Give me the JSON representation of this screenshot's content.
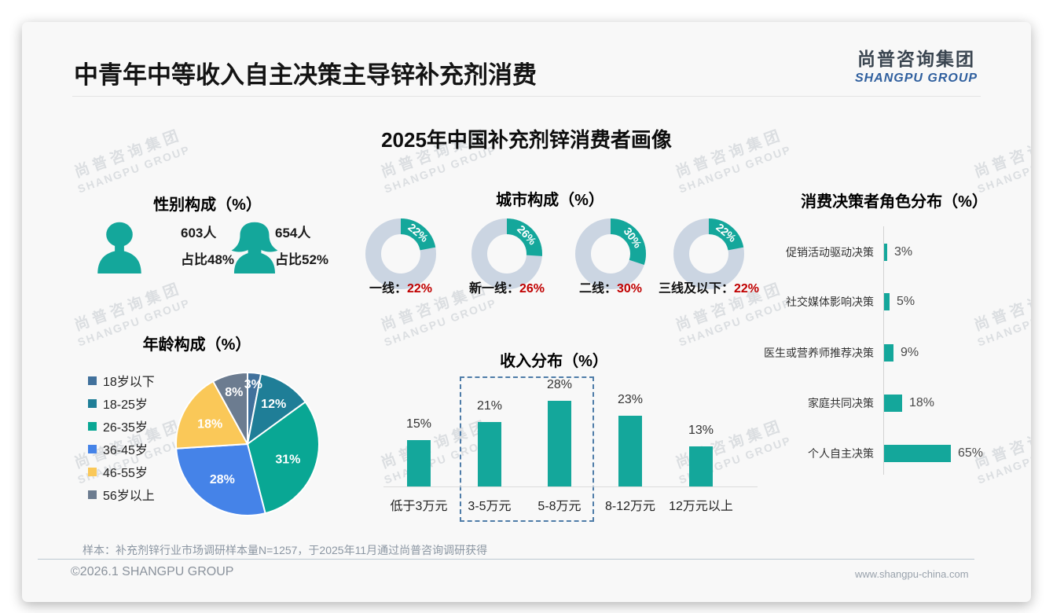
{
  "header": {
    "title": "中青年中等收入自主决策主导锌补充剂消费",
    "logo_cn": "尚普咨询集团",
    "logo_en": "SHANGPU GROUP"
  },
  "main_title": "2025年中国补充剂锌消费者画像",
  "watermark_cn": "尚普咨询集团",
  "watermark_en": "SHANGPU GROUP",
  "theme": {
    "accent_teal": "#14A79B",
    "donut_ring_gray": "#CBD5E2",
    "value_red": "#C00000",
    "logo_blue": "#2F5F9E"
  },
  "chart_data": [
    {
      "id": "gender",
      "type": "pictogram",
      "title": "性别构成（%）",
      "items": [
        {
          "icon": "male",
          "count": "603人",
          "share": "占比48%"
        },
        {
          "icon": "female",
          "count": "654人",
          "share": "占比52%"
        }
      ]
    },
    {
      "id": "age",
      "type": "pie",
      "title": "年龄构成（%）",
      "categories": [
        "18岁以下",
        "18-25岁",
        "26-35岁",
        "36-45岁",
        "46-55岁",
        "56岁以上"
      ],
      "values": [
        3,
        12,
        31,
        28,
        18,
        8
      ],
      "colors": [
        "#41719C",
        "#1F7E97",
        "#09A794",
        "#4583E8",
        "#FAC858",
        "#6C7C90"
      ],
      "legend_position": "left",
      "start_angle": "top-clockwise"
    },
    {
      "id": "city",
      "type": "donut",
      "title": "城市构成（%）",
      "categories": [
        "一线",
        "新一线",
        "二线",
        "三线及以下"
      ],
      "values": [
        22,
        26,
        30,
        22
      ],
      "segment_color": "#14A79B",
      "ring_color": "#CBD5E2",
      "value_color": "#C00000"
    },
    {
      "id": "income",
      "type": "bar",
      "title": "收入分布（%）",
      "categories": [
        "低于3万元",
        "3-5万元",
        "5-8万元",
        "8-12万元",
        "12万元以上"
      ],
      "values": [
        15,
        21,
        28,
        23,
        13
      ],
      "bar_color": "#14A79B",
      "highlighted_categories": [
        "3-5万元",
        "5-8万元"
      ],
      "grid": "off"
    },
    {
      "id": "decision",
      "type": "hbar",
      "title": "消费决策者角色分布（%）",
      "categories": [
        "促销活动驱动决策",
        "社交媒体影响决策",
        "医生或营养师推荐决策",
        "家庭共同决策",
        "个人自主决策"
      ],
      "values": [
        3,
        5,
        9,
        18,
        65
      ],
      "bar_color": "#14A79B",
      "grid": "off"
    }
  ],
  "footer": {
    "sample_note": "样本：补充剂锌行业市场调研样本量N=1257，于2025年11月通过尚普咨询调研获得",
    "copyright": "©2026.1 SHANGPU GROUP",
    "website": "www.shangpu-china.com"
  }
}
